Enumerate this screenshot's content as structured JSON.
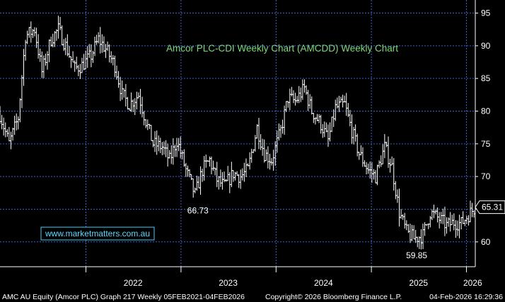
{
  "chart_data": {
    "type": "ohlc",
    "title": "Amcor PLC-CDI Weekly Chart (AMCDD) Weekly Chart",
    "watermark": "www.marketmatters.com.au",
    "footer_left": "AMC AU Equity (Amcor PLC) Graph 217 Weekly 05FEB2021-04FEB2026",
    "footer_mid": "Copyright© 2026 Bloomberg Finance L.P.",
    "footer_right": "04-Feb-2026 16:29:36",
    "last_price_label": "65.31",
    "last_price": 65.31,
    "ylim": [
      56.2,
      97
    ],
    "yticks": [
      "60",
      "65",
      "70",
      "75",
      "80",
      "85",
      "90",
      "95"
    ],
    "ytick_values": [
      60,
      65,
      70,
      75,
      80,
      85,
      90,
      95
    ],
    "xticks": [
      "2022",
      "2023",
      "2024",
      "2025",
      "2026"
    ],
    "xlim": [
      "2021-02-05",
      "2026-02-04"
    ],
    "annotations": [
      {
        "label": "66.73",
        "date": "2023-02-24",
        "value": 66.73
      },
      {
        "label": "59.85",
        "date": "2025-06-13",
        "value": 59.85
      }
    ],
    "series_dates": [
      "2021-02-05",
      "2021-03-12",
      "2021-04-16",
      "2021-05-14",
      "2021-06-18",
      "2021-07-16",
      "2021-08-20",
      "2021-09-17",
      "2021-10-15",
      "2021-11-19",
      "2021-12-17",
      "2022-01-21",
      "2022-02-18",
      "2022-03-18",
      "2022-04-22",
      "2022-05-20",
      "2022-06-17",
      "2022-07-22",
      "2022-08-19",
      "2022-09-16",
      "2022-10-21",
      "2022-11-18",
      "2022-12-16",
      "2023-01-20",
      "2023-02-24",
      "2023-03-24",
      "2023-04-21",
      "2023-05-19",
      "2023-06-16",
      "2023-07-21",
      "2023-08-18",
      "2023-09-15",
      "2023-10-20",
      "2023-11-17",
      "2023-12-15",
      "2024-01-19",
      "2024-02-16",
      "2024-03-15",
      "2024-04-19",
      "2024-05-17",
      "2024-06-21",
      "2024-07-19",
      "2024-08-16",
      "2024-09-20",
      "2024-10-18",
      "2024-11-15",
      "2024-12-20",
      "2025-01-17",
      "2025-02-21",
      "2025-03-21",
      "2025-04-18",
      "2025-05-16",
      "2025-06-13",
      "2025-07-18",
      "2025-08-15",
      "2025-09-19",
      "2025-10-17",
      "2025-11-14",
      "2025-12-12",
      "2026-01-16",
      "2026-02-04"
    ],
    "series_close": [
      79.5,
      75,
      79,
      91.5,
      92.5,
      86,
      91,
      92.5,
      90,
      86.5,
      87,
      88.5,
      91,
      89.5,
      87,
      82.5,
      81,
      82.5,
      78.5,
      75,
      74.5,
      72.5,
      75.5,
      71,
      67.2,
      71,
      72.5,
      69.5,
      68.5,
      70.5,
      70,
      71,
      77.5,
      73.5,
      72.5,
      77,
      82,
      81.5,
      83.5,
      80,
      78,
      75.5,
      80.5,
      81,
      77,
      73.5,
      71,
      70,
      74.5,
      71.5,
      64.5,
      61.5,
      60.5,
      61,
      64.5,
      63.5,
      62.5,
      63,
      62.8,
      64.5,
      65.3
    ]
  }
}
